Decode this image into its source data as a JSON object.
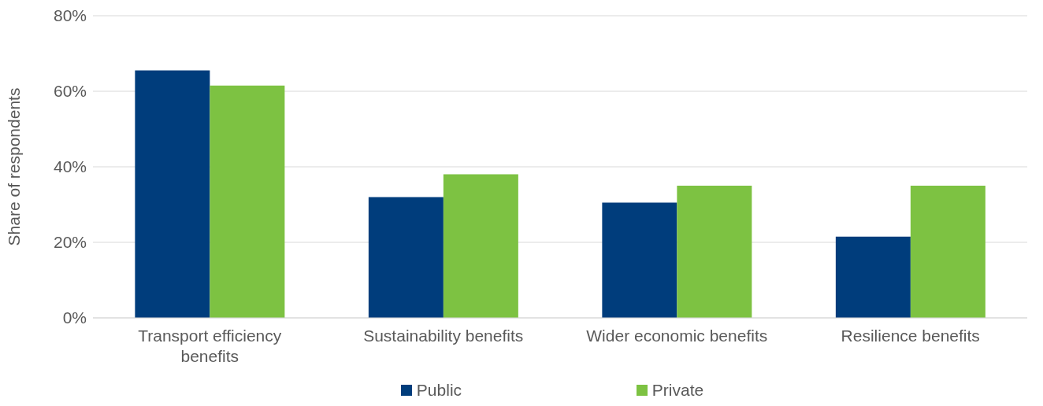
{
  "chart_data": {
    "type": "bar",
    "ylabel": "Share of respondents",
    "categories": [
      "Transport efficiency benefits",
      "Sustainability benefits",
      "Wider economic benefits",
      "Resilience benefits"
    ],
    "series": [
      {
        "name": "Public",
        "color": "#003d7c",
        "values": [
          65.5,
          32,
          30.5,
          21.5
        ]
      },
      {
        "name": "Private",
        "color": "#7dc242",
        "values": [
          61.5,
          38,
          35,
          35
        ]
      }
    ],
    "ylim": [
      0,
      80
    ],
    "yticks": [
      {
        "value": 0,
        "label": "0%"
      },
      {
        "value": 20,
        "label": "20%"
      },
      {
        "value": 40,
        "label": "40%"
      },
      {
        "value": 60,
        "label": "60%"
      },
      {
        "value": 80,
        "label": "80%"
      }
    ],
    "grid": "y",
    "legend": "bottom"
  }
}
